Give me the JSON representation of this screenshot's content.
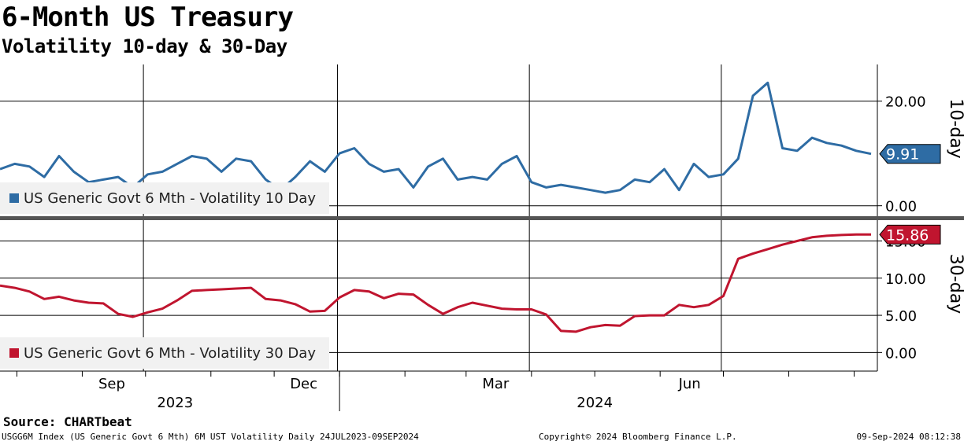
{
  "title": "6-Month US Treasury",
  "subtitle": "Volatility 10-day & 30-Day",
  "source": "Source: CHARTbeat",
  "footer": {
    "left": "USGG6M Index (US Generic Govt 6 Mth) 6M UST Volatility  Daily 24JUL2023-09SEP2024",
    "middle": "Copyright© 2024 Bloomberg Finance L.P.",
    "right": "09-Sep-2024 08:12:38"
  },
  "x_axis": {
    "month_labels": [
      "Sep",
      "Dec",
      "Mar",
      "Jun"
    ],
    "year_labels": [
      "2023",
      "2024"
    ]
  },
  "colors": {
    "series_10": "#2e6ca4",
    "series_30": "#c0152f",
    "grid": "#000000",
    "legend_bg": "#f1f1f1"
  },
  "chart_data": [
    {
      "type": "line",
      "title": "Volatility 10-day",
      "ylabel": "10-day",
      "ylim": [
        -2,
        27
      ],
      "yticks": [
        "0.00",
        "20.00"
      ],
      "last_value_label": "9.91",
      "legend": {
        "position": "bottom-left"
      },
      "grid": true,
      "series": [
        {
          "name": "US Generic Govt 6 Mth - Volatility 10 Day",
          "x": [
            "2023-07-24",
            "2023-07-31",
            "2023-08-07",
            "2023-08-14",
            "2023-08-21",
            "2023-08-28",
            "2023-09-04",
            "2023-09-11",
            "2023-09-18",
            "2023-09-25",
            "2023-10-02",
            "2023-10-09",
            "2023-10-16",
            "2023-10-23",
            "2023-10-30",
            "2023-11-06",
            "2023-11-13",
            "2023-11-20",
            "2023-11-27",
            "2023-12-04",
            "2023-12-11",
            "2023-12-18",
            "2023-12-25",
            "2024-01-01",
            "2024-01-08",
            "2024-01-15",
            "2024-01-22",
            "2024-01-29",
            "2024-02-05",
            "2024-02-12",
            "2024-02-19",
            "2024-02-26",
            "2024-03-04",
            "2024-03-11",
            "2024-03-18",
            "2024-03-25",
            "2024-04-01",
            "2024-04-08",
            "2024-04-15",
            "2024-04-22",
            "2024-04-29",
            "2024-05-06",
            "2024-05-13",
            "2024-05-20",
            "2024-05-27",
            "2024-06-03",
            "2024-06-10",
            "2024-06-17",
            "2024-06-24",
            "2024-07-01",
            "2024-07-08",
            "2024-07-15",
            "2024-07-22",
            "2024-07-29",
            "2024-08-05",
            "2024-08-12",
            "2024-08-19",
            "2024-08-26",
            "2024-09-02",
            "2024-09-09"
          ],
          "values": [
            7.0,
            8.0,
            7.5,
            5.5,
            9.5,
            6.5,
            4.5,
            5.0,
            5.5,
            3.5,
            6.0,
            6.5,
            8.0,
            9.5,
            9.0,
            6.5,
            9.0,
            8.5,
            5.0,
            3.0,
            5.5,
            8.5,
            6.5,
            10.0,
            11.0,
            8.0,
            6.5,
            7.0,
            3.5,
            7.5,
            9.0,
            5.0,
            5.5,
            5.0,
            8.0,
            9.5,
            4.5,
            3.5,
            4.0,
            3.5,
            3.0,
            2.5,
            3.0,
            5.0,
            4.5,
            7.0,
            3.0,
            8.0,
            5.5,
            6.0,
            9.0,
            21.0,
            23.5,
            11.0,
            10.5,
            13.0,
            12.0,
            11.5,
            10.5,
            9.91
          ]
        }
      ]
    },
    {
      "type": "line",
      "title": "Volatility 30-Day",
      "ylabel": "30-day",
      "ylim": [
        -2.5,
        17.8
      ],
      "yticks": [
        "0.00",
        "5.00",
        "10.00",
        "15.00"
      ],
      "last_value_label": "15.86",
      "legend": {
        "position": "bottom-left"
      },
      "grid": true,
      "series": [
        {
          "name": "US Generic Govt 6 Mth - Volatility 30 Day",
          "x": [
            "2023-07-24",
            "2023-07-31",
            "2023-08-07",
            "2023-08-14",
            "2023-08-21",
            "2023-08-28",
            "2023-09-04",
            "2023-09-11",
            "2023-09-18",
            "2023-09-25",
            "2023-10-02",
            "2023-10-09",
            "2023-10-16",
            "2023-10-23",
            "2023-10-30",
            "2023-11-06",
            "2023-11-13",
            "2023-11-20",
            "2023-11-27",
            "2023-12-04",
            "2023-12-11",
            "2023-12-18",
            "2023-12-25",
            "2024-01-01",
            "2024-01-08",
            "2024-01-15",
            "2024-01-22",
            "2024-01-29",
            "2024-02-05",
            "2024-02-12",
            "2024-02-19",
            "2024-02-26",
            "2024-03-04",
            "2024-03-11",
            "2024-03-18",
            "2024-03-25",
            "2024-04-01",
            "2024-04-08",
            "2024-04-15",
            "2024-04-22",
            "2024-04-29",
            "2024-05-06",
            "2024-05-13",
            "2024-05-20",
            "2024-05-27",
            "2024-06-03",
            "2024-06-10",
            "2024-06-17",
            "2024-06-24",
            "2024-07-01",
            "2024-07-08",
            "2024-07-15",
            "2024-07-22",
            "2024-07-29",
            "2024-08-05",
            "2024-08-12",
            "2024-08-19",
            "2024-08-26",
            "2024-09-02",
            "2024-09-09"
          ],
          "values": [
            9.0,
            8.7,
            8.2,
            7.2,
            7.5,
            7.0,
            6.7,
            6.6,
            5.2,
            4.8,
            5.4,
            5.9,
            7.0,
            8.3,
            8.4,
            8.5,
            8.6,
            8.7,
            7.2,
            7.0,
            6.5,
            5.5,
            5.6,
            7.4,
            8.4,
            8.2,
            7.3,
            7.9,
            7.8,
            6.4,
            5.2,
            6.1,
            6.7,
            6.3,
            5.9,
            5.8,
            5.8,
            5.1,
            2.9,
            2.8,
            3.4,
            3.7,
            3.6,
            4.9,
            5.0,
            5.0,
            6.4,
            6.1,
            6.4,
            7.6,
            12.6,
            13.3,
            13.9,
            14.5,
            15.0,
            15.5,
            15.7,
            15.8,
            15.86,
            15.86
          ]
        }
      ]
    }
  ]
}
